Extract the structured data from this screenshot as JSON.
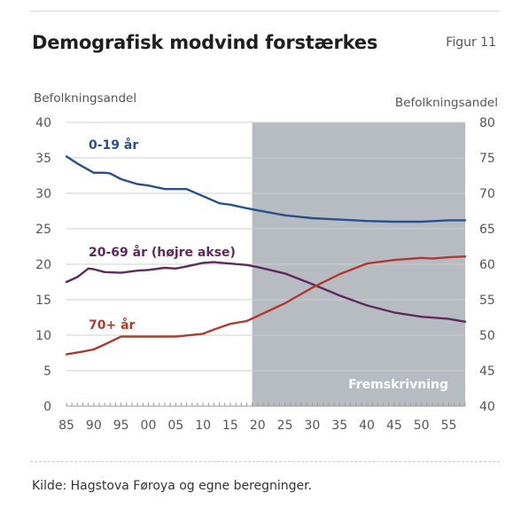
{
  "figure": {
    "title": "Demografisk modvind forstærkes",
    "figure_label": "Figur 11",
    "source": "Kilde:  Hagstova Føroya og egne beregninger."
  },
  "chart_data": {
    "type": "line",
    "left_axis_label": "Befolkningsandel",
    "right_axis_label": "Befolkningsandel",
    "ylim_left": [
      0,
      40
    ],
    "ylim_right": [
      40,
      80
    ],
    "left_ticks": [
      0,
      5,
      10,
      15,
      20,
      25,
      30,
      35,
      40
    ],
    "right_ticks": [
      40,
      45,
      50,
      55,
      60,
      65,
      70,
      75,
      80
    ],
    "x_range": [
      1985,
      2058
    ],
    "x_ticks": [
      1985,
      1990,
      1995,
      2000,
      2005,
      2010,
      2015,
      2020,
      2025,
      2030,
      2035,
      2040,
      2045,
      2050,
      2055
    ],
    "x_tick_labels": [
      "85",
      "90",
      "95",
      "00",
      "05",
      "10",
      "15",
      "20",
      "25",
      "30",
      "35",
      "40",
      "45",
      "50",
      "55"
    ],
    "projection": {
      "from": 2019,
      "label": "Fremskrivning"
    },
    "grid": true,
    "series": [
      {
        "name": "0-19 år",
        "axis": "left",
        "color": "#2b4f8c",
        "x": [
          1985,
          1987,
          1990,
          1992,
          1993,
          1995,
          1998,
          2000,
          2003,
          2005,
          2007,
          2010,
          2013,
          2015,
          2018,
          2020,
          2025,
          2030,
          2035,
          2040,
          2045,
          2050,
          2055,
          2058
        ],
        "y": [
          35.2,
          34.2,
          32.9,
          32.9,
          32.8,
          32.0,
          31.3,
          31.1,
          30.6,
          30.6,
          30.6,
          29.6,
          28.6,
          28.4,
          27.9,
          27.6,
          26.9,
          26.5,
          26.3,
          26.1,
          26.0,
          26.0,
          26.2,
          26.2
        ]
      },
      {
        "name": "20-69 år (højre akse)",
        "axis": "right",
        "color": "#5e2a5e",
        "x": [
          1985,
          1987,
          1989,
          1990,
          1992,
          1995,
          1998,
          2000,
          2003,
          2005,
          2007,
          2010,
          2012,
          2015,
          2018,
          2020,
          2025,
          2030,
          2035,
          2040,
          2045,
          2050,
          2055,
          2058
        ],
        "y": [
          57.5,
          58.2,
          59.4,
          59.3,
          58.9,
          58.8,
          59.1,
          59.2,
          59.5,
          59.4,
          59.7,
          60.2,
          60.3,
          60.1,
          59.9,
          59.6,
          58.7,
          57.2,
          55.6,
          54.2,
          53.2,
          52.6,
          52.3,
          51.9
        ]
      },
      {
        "name": "70+ år",
        "axis": "left",
        "color": "#b03a2e",
        "x": [
          1985,
          1988,
          1990,
          1992,
          1995,
          2000,
          2005,
          2010,
          2012,
          2015,
          2018,
          2020,
          2025,
          2030,
          2035,
          2040,
          2045,
          2050,
          2052,
          2055,
          2058
        ],
        "y": [
          7.3,
          7.7,
          8.0,
          8.7,
          9.8,
          9.8,
          9.8,
          10.2,
          10.8,
          11.6,
          12.0,
          12.7,
          14.5,
          16.7,
          18.6,
          20.1,
          20.6,
          20.9,
          20.8,
          21.0,
          21.1
        ]
      }
    ],
    "annotations": [
      {
        "text": "0-19 år",
        "series": "0-19 år"
      },
      {
        "text": "20-69 år (højre akse)",
        "series": "20-69 år (højre akse)"
      },
      {
        "text": "70+ år",
        "series": "70+ år"
      }
    ],
    "colors": {
      "shade": "#b7bcc3",
      "grid": "#cfcfcf"
    }
  }
}
